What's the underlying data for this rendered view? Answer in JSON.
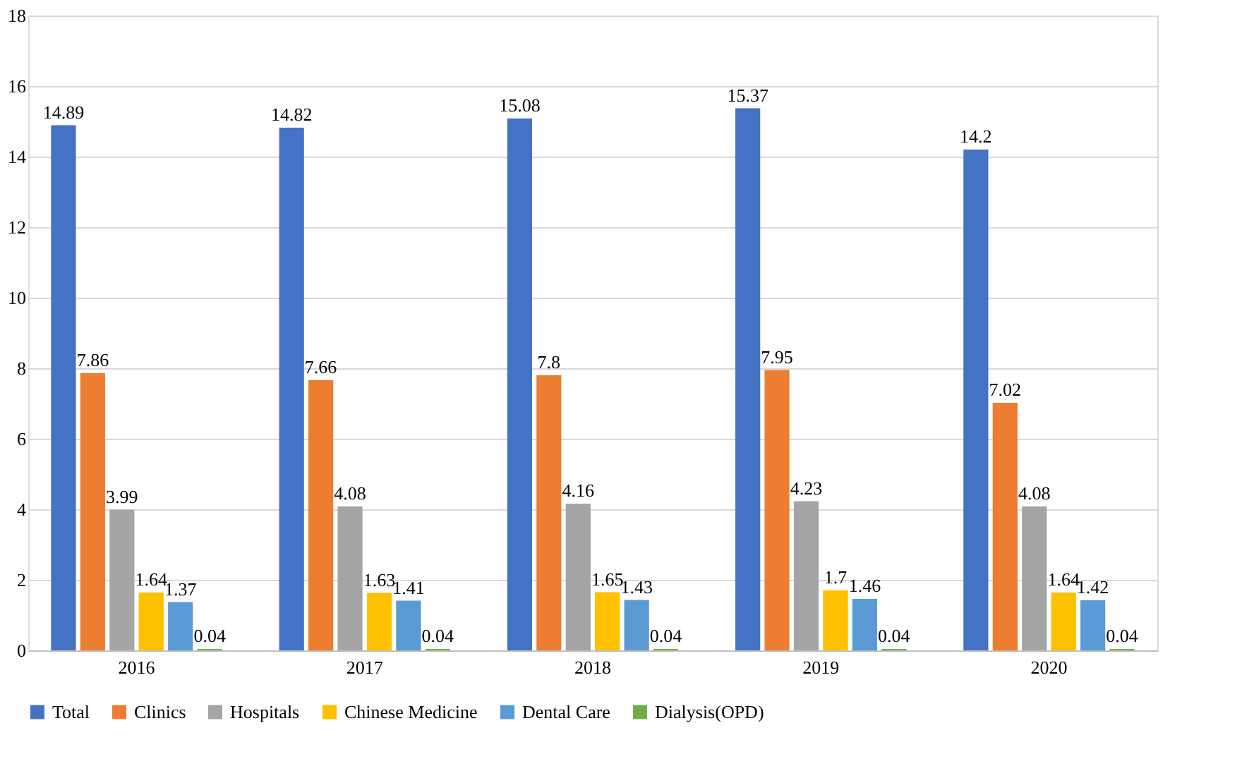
{
  "chart_data": {
    "type": "bar",
    "categories": [
      "2016",
      "2017",
      "2018",
      "2019",
      "2020"
    ],
    "series": [
      {
        "name": "Total",
        "color": "#4472c4",
        "values": [
          14.89,
          14.82,
          15.08,
          15.37,
          14.2
        ]
      },
      {
        "name": "Clinics",
        "color": "#ed7d31",
        "values": [
          7.86,
          7.66,
          7.8,
          7.95,
          7.02
        ]
      },
      {
        "name": "Hospitals",
        "color": "#a5a5a5",
        "values": [
          3.99,
          4.08,
          4.16,
          4.23,
          4.08
        ]
      },
      {
        "name": "Chinese Medicine",
        "color": "#ffc000",
        "values": [
          1.64,
          1.63,
          1.65,
          1.7,
          1.64
        ]
      },
      {
        "name": "Dental Care",
        "color": "#5b9bd5",
        "values": [
          1.37,
          1.41,
          1.43,
          1.46,
          1.42
        ]
      },
      {
        "name": "Dialysis(OPD)",
        "color": "#70ad47",
        "values": [
          0.04,
          0.04,
          0.04,
          0.04,
          0.04
        ]
      }
    ],
    "ylim": [
      0,
      18
    ],
    "yticks": [
      0,
      2,
      4,
      6,
      8,
      10,
      12,
      14,
      16,
      18
    ],
    "grid": "y",
    "legend": "bottom",
    "data_labels": true
  }
}
